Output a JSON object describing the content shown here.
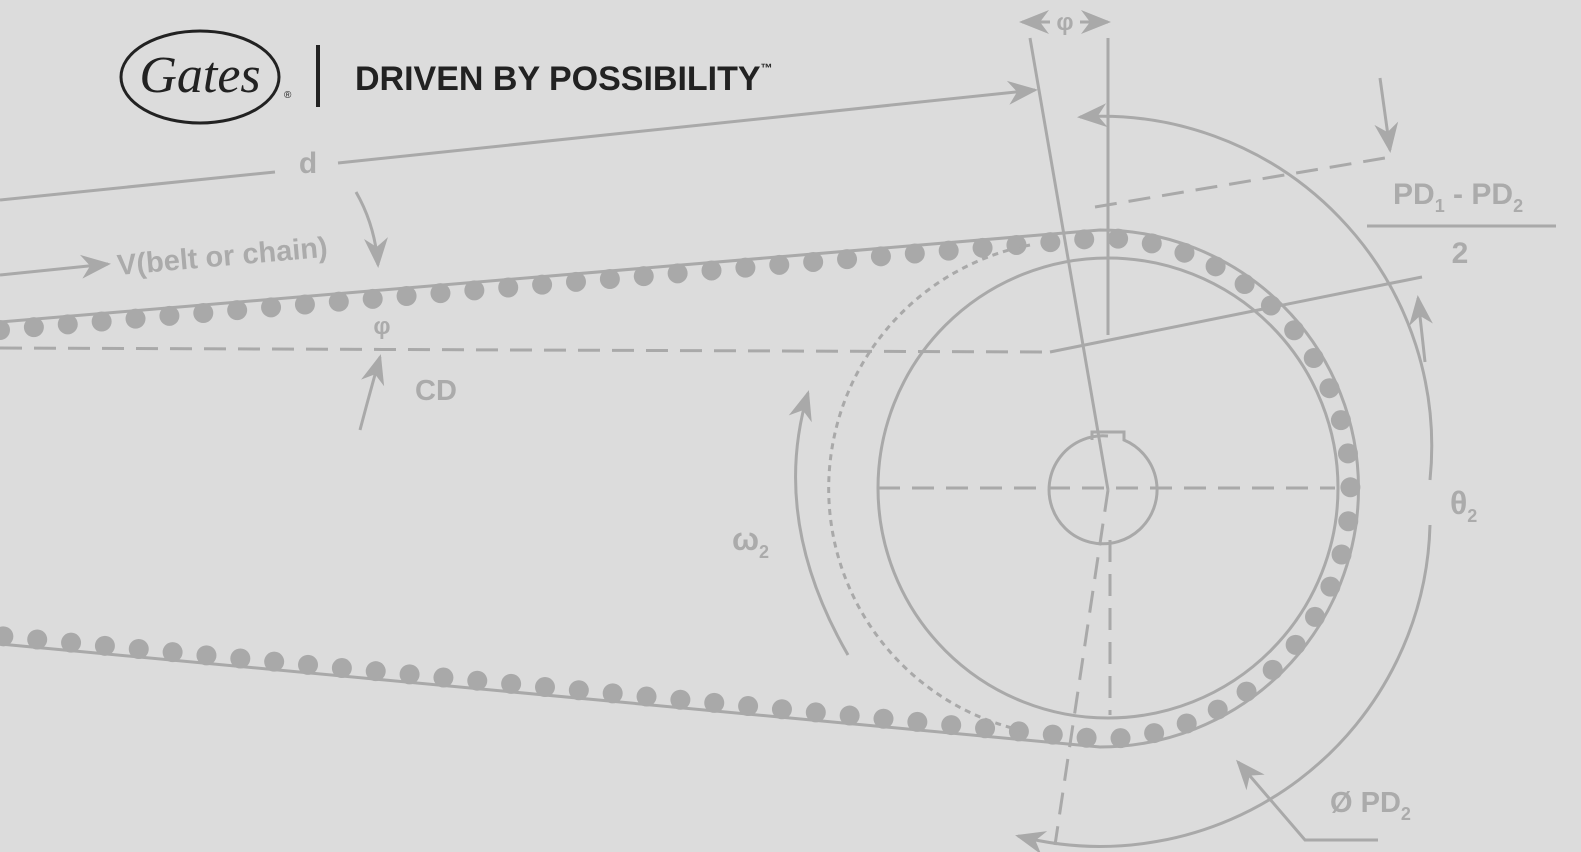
{
  "logo": {
    "name": "Gates",
    "registered": "®"
  },
  "tagline": {
    "text": "DRIVEN BY POSSIBILITY",
    "trademark": "™"
  },
  "labels": {
    "d": "d",
    "velocity": "V(belt or chain)",
    "phi_top": "φ",
    "phi_left": "φ",
    "cd": "CD",
    "pd_difference": {
      "a": "PD",
      "a_sub": "1",
      "sep": " - ",
      "b": "PD",
      "b_sub": "2",
      "denominator": "2"
    },
    "theta": {
      "main": "θ",
      "sub": "2"
    },
    "omega": {
      "main": "ω",
      "sub": "2"
    },
    "pitch_diameter": {
      "main": "Ø PD",
      "sub": "2"
    }
  }
}
